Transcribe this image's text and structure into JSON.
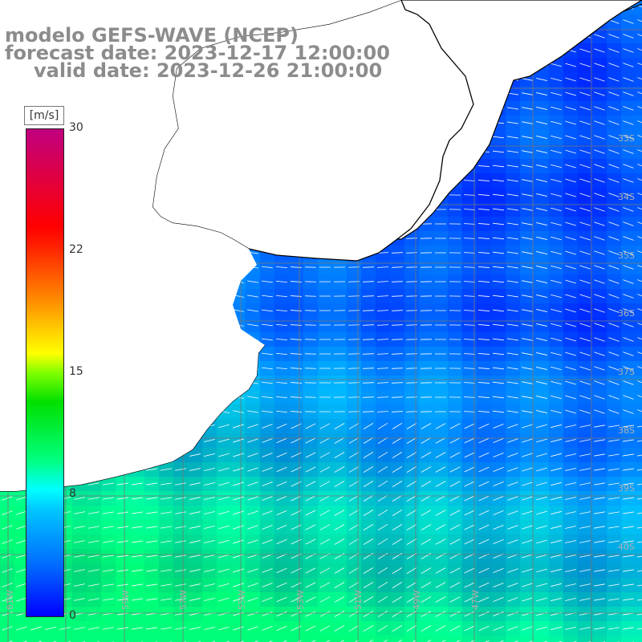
{
  "title": {
    "line1": "modelo GEFS-WAVE (NCEP)",
    "line2": "forecast date: 2023-12-17 12:00:00",
    "line3": "valid date: 2023-12-26 21:00:00"
  },
  "colorbar": {
    "unit": "[m/s]",
    "ticks": [
      "30",
      "22",
      "15",
      "8",
      "0"
    ]
  },
  "map": {
    "lon_labels": [
      "61W",
      "59W",
      "57W",
      "55W",
      "53W",
      "51W",
      "49W",
      "47W"
    ],
    "lat_labels": [
      "33S",
      "34S",
      "35S",
      "36S",
      "37S",
      "38S",
      "39S",
      "40S"
    ]
  },
  "colors": {
    "background": "#ffffff",
    "coast": "#000000",
    "grid": "#666666",
    "arrow": "#ffffff",
    "title_text": "#8c8c8c"
  }
}
